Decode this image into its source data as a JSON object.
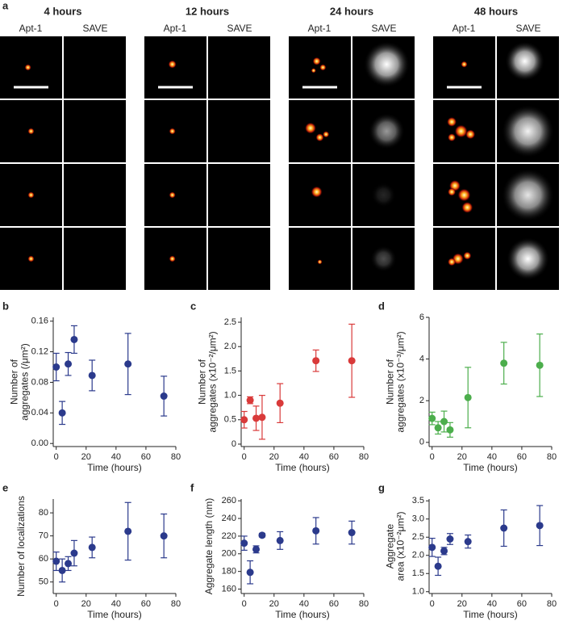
{
  "image_panel": {
    "label": "a",
    "groups": [
      {
        "title": "4 hours",
        "channels": [
          "Apt-1",
          "SAVE"
        ]
      },
      {
        "title": "12 hours",
        "channels": [
          "Apt-1",
          "SAVE"
        ]
      },
      {
        "title": "24 hours",
        "channels": [
          "Apt-1",
          "SAVE"
        ]
      },
      {
        "title": "48 hours",
        "channels": [
          "Apt-1",
          "SAVE"
        ]
      }
    ]
  },
  "chart_data": [
    {
      "type": "scatter",
      "panel": "b",
      "ylabel": [
        "Number of",
        "aggregates (/μm²)"
      ],
      "xlabel": "Time (hours)",
      "x": [
        0,
        4,
        8,
        12,
        24,
        48,
        72
      ],
      "values": [
        0.1,
        0.04,
        0.104,
        0.136,
        0.089,
        0.104,
        0.062
      ],
      "errors": [
        0.018,
        0.015,
        0.015,
        0.018,
        0.02,
        0.04,
        0.026
      ],
      "color": "#2b3a8c",
      "xlim": [
        -2,
        80
      ],
      "xticks": [
        0,
        20,
        40,
        60,
        80
      ],
      "ylim": [
        -0.004,
        0.165
      ],
      "yticks": [
        {
          "value": 0,
          "label": "0.00"
        },
        0.04,
        0.08,
        0.12,
        0.16
      ]
    },
    {
      "type": "scatter",
      "panel": "c",
      "ylabel": [
        "Number of",
        "aggregates (x10⁻²/μm²)"
      ],
      "xlabel": "Time (hours)",
      "x": [
        0,
        4,
        8,
        12,
        24,
        48,
        72
      ],
      "values": [
        0.5,
        0.9,
        0.53,
        0.55,
        0.84,
        1.71,
        1.71
      ],
      "errors": [
        0.17,
        0.07,
        0.25,
        0.45,
        0.4,
        0.22,
        0.75
      ],
      "color": "#d93a3a",
      "xlim": [
        -2,
        80
      ],
      "xticks": [
        0,
        20,
        40,
        60,
        80
      ],
      "ylim": [
        -0.05,
        2.6
      ],
      "yticks": [
        0,
        0.5,
        {
          "value": 1,
          "label": "1.0"
        },
        1.5,
        {
          "value": 2,
          "label": "2.0"
        },
        2.5
      ]
    },
    {
      "type": "scatter",
      "panel": "d",
      "ylabel": [
        "Number of",
        "aggregates (x10⁻³/μm²)"
      ],
      "xlabel": "Time (hours)",
      "x": [
        0,
        4,
        8,
        12,
        24,
        48,
        72
      ],
      "values": [
        1.15,
        0.7,
        1.0,
        0.6,
        2.15,
        3.8,
        3.7
      ],
      "errors": [
        0.3,
        0.3,
        0.5,
        0.35,
        1.45,
        1.0,
        1.5
      ],
      "color": "#4cae4c",
      "xlim": [
        -2,
        80
      ],
      "xticks": [
        0,
        20,
        40,
        60,
        80
      ],
      "ylim": [
        -0.2,
        6
      ],
      "yticks": [
        0,
        2,
        4,
        6
      ]
    },
    {
      "type": "scatter",
      "panel": "e",
      "ylabel": [
        "Number of localizations"
      ],
      "xlabel": "Time (hours)",
      "x": [
        0,
        4,
        8,
        12,
        24,
        48,
        72
      ],
      "values": [
        59,
        55,
        58,
        62.5,
        65,
        72,
        70
      ],
      "errors": [
        4,
        5,
        3,
        5.5,
        4.5,
        12.5,
        9.5
      ],
      "color": "#2b3a8c",
      "xlim": [
        -2,
        80
      ],
      "xticks": [
        0,
        20,
        40,
        60,
        80
      ],
      "ylim": [
        45,
        86
      ],
      "yticks": [
        50,
        60,
        70,
        80
      ]
    },
    {
      "type": "scatter",
      "panel": "f",
      "ylabel": [
        "Aggregate length (nm)"
      ],
      "xlabel": "Time (hours)",
      "x": [
        0,
        4,
        8,
        12,
        24,
        48,
        72
      ],
      "values": [
        212,
        179,
        205,
        221,
        215,
        226,
        224
      ],
      "errors": [
        8,
        13,
        4,
        2,
        10,
        15,
        13
      ],
      "color": "#2b3a8c",
      "xlim": [
        -2,
        80
      ],
      "xticks": [
        0,
        20,
        40,
        60,
        80
      ],
      "ylim": [
        155,
        262
      ],
      "yticks": [
        160,
        180,
        200,
        220,
        240,
        260
      ]
    },
    {
      "type": "scatter",
      "panel": "g",
      "ylabel": [
        "Aggregate",
        "area (x10⁻²μm²)"
      ],
      "xlabel": "Time (hours)",
      "x": [
        0,
        4,
        8,
        12,
        24,
        48,
        72
      ],
      "values": [
        2.22,
        1.7,
        2.12,
        2.45,
        2.38,
        2.75,
        2.82
      ],
      "errors": [
        0.25,
        0.25,
        0.1,
        0.15,
        0.18,
        0.5,
        0.55
      ],
      "color": "#2b3a8c",
      "xlim": [
        -2,
        80
      ],
      "xticks": [
        0,
        20,
        40,
        60,
        80
      ],
      "ylim": [
        0.95,
        3.55
      ],
      "yticks": [
        {
          "value": 1,
          "label": "1.0"
        },
        1.5,
        {
          "value": 2,
          "label": "2.0"
        },
        2.5,
        {
          "value": 3,
          "label": "3.0"
        },
        3.5
      ]
    }
  ]
}
